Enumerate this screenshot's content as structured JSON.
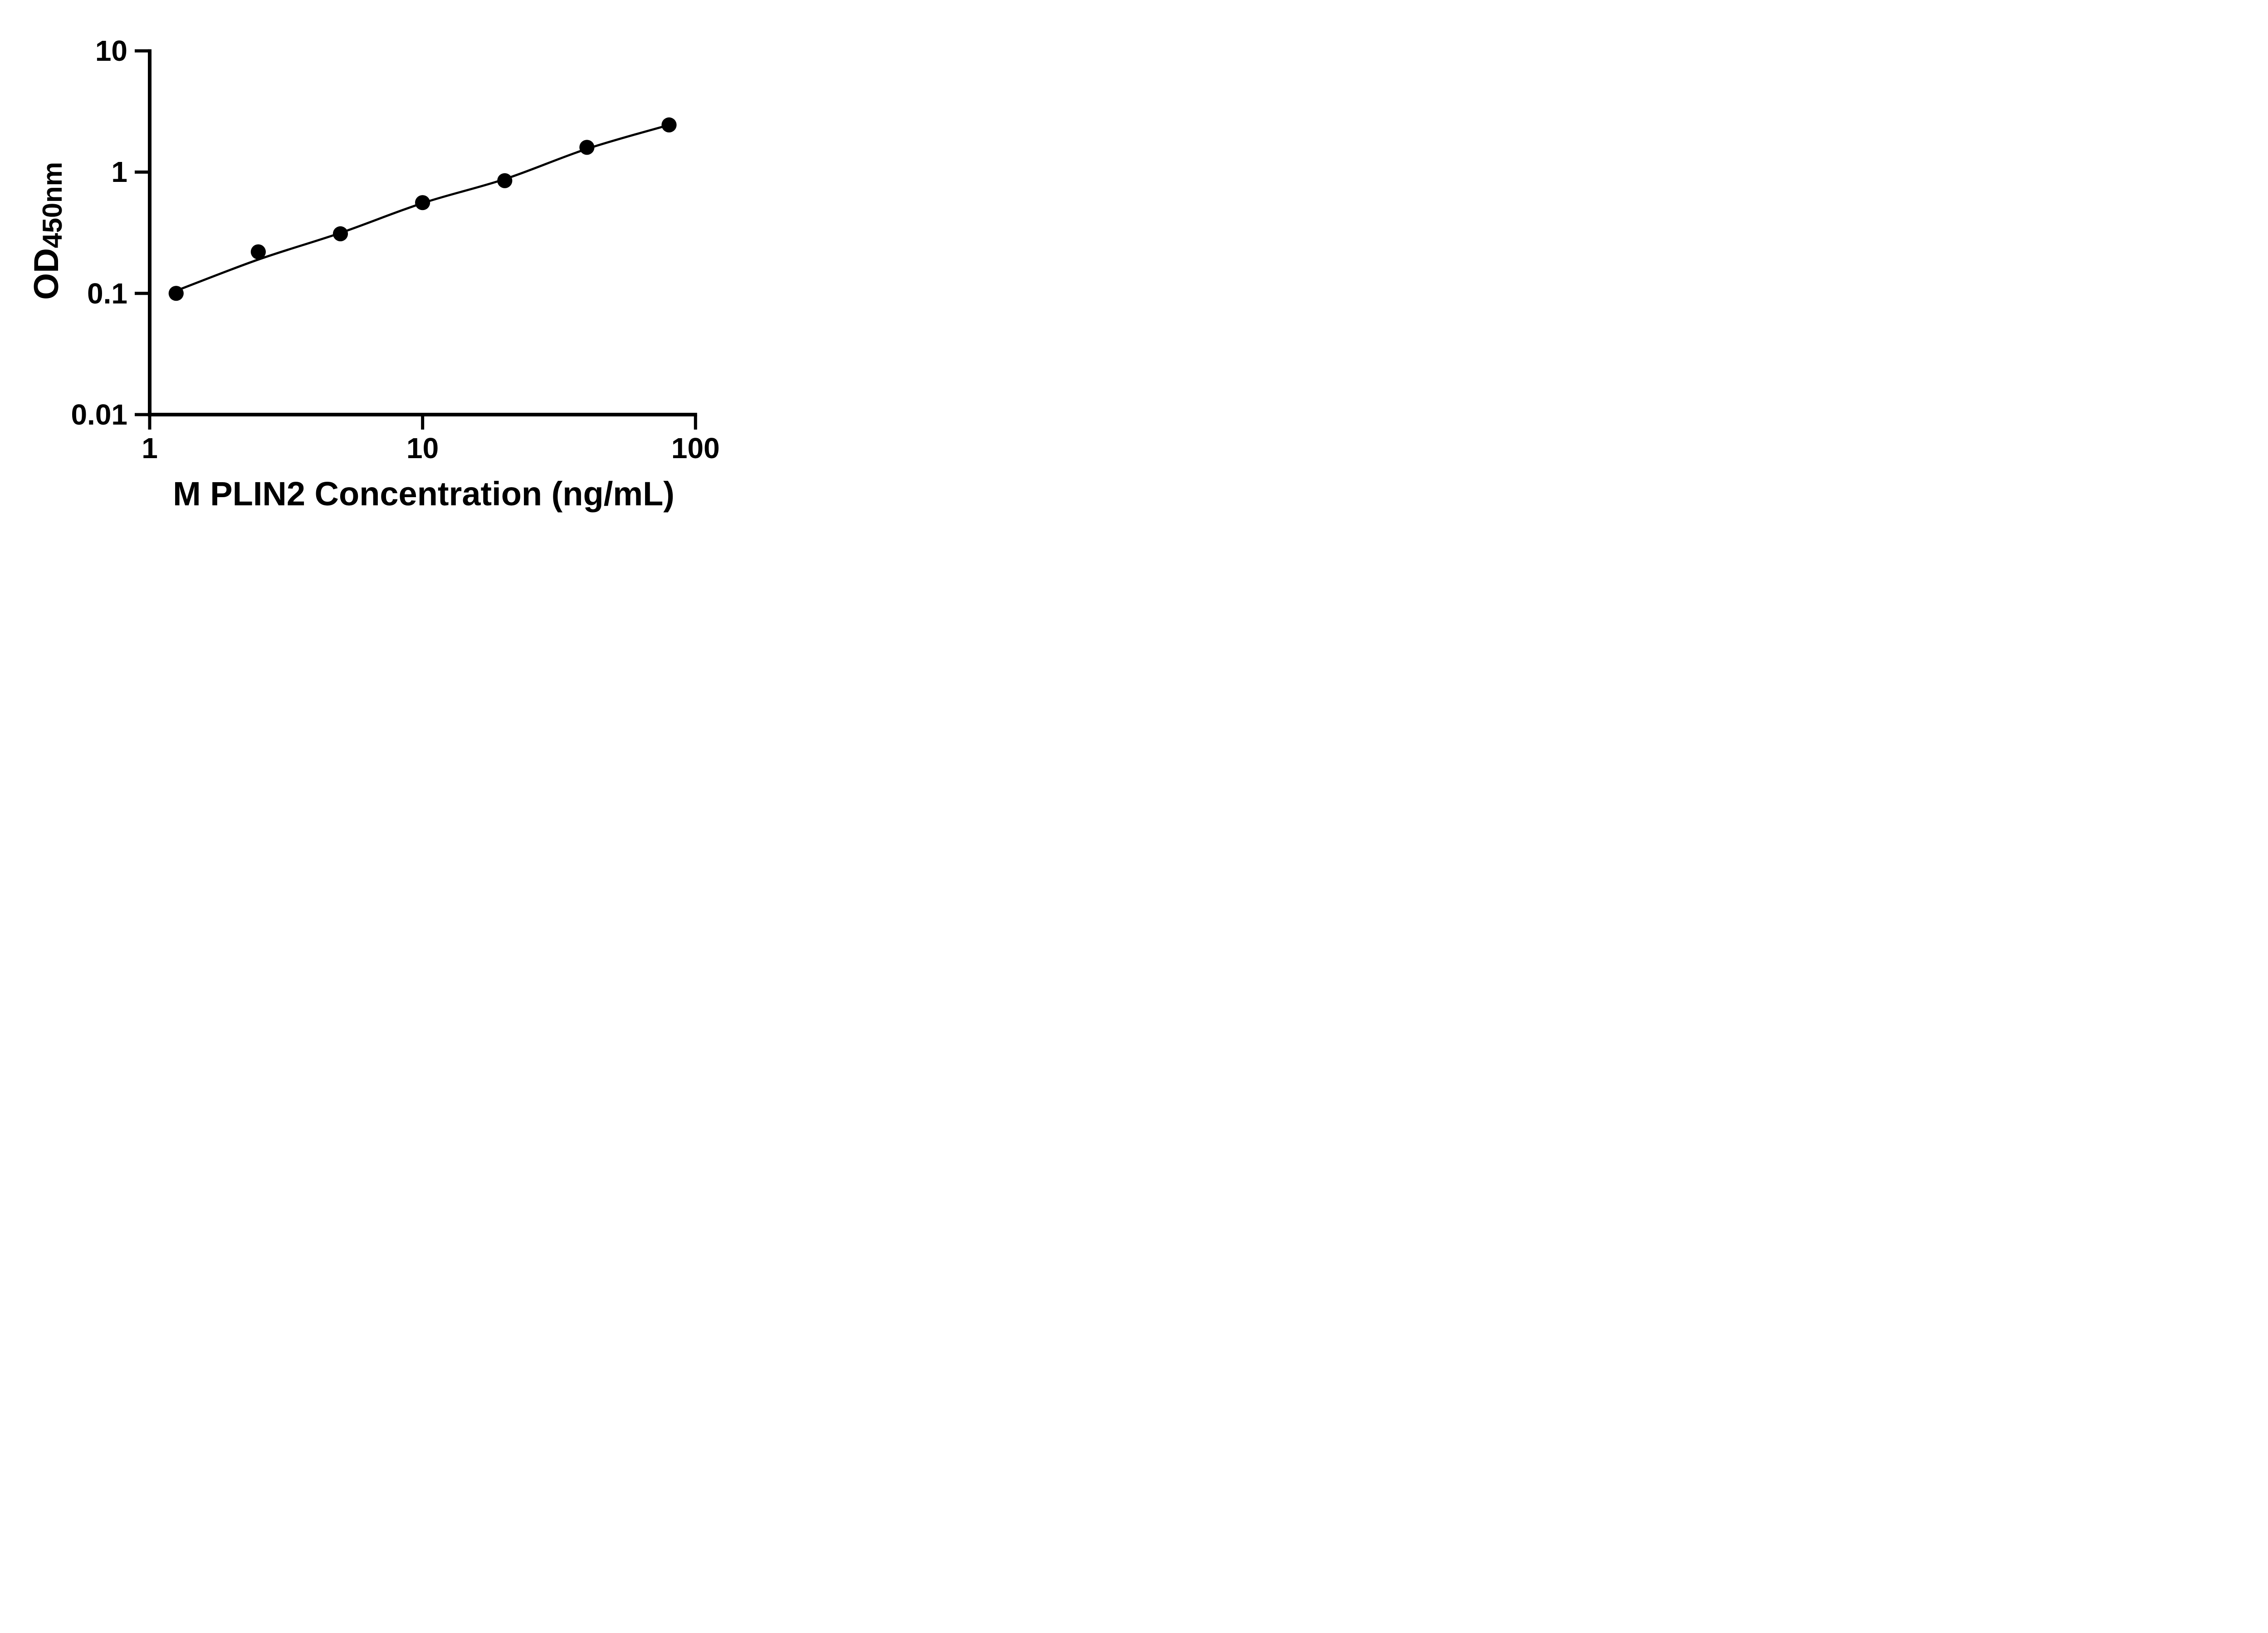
{
  "figure": {
    "background_color": "#ffffff",
    "foreground_color": "#000000"
  },
  "chart_data": {
    "type": "scatter",
    "subtype": "standard-curve-with-fit-line",
    "title": "",
    "xlabel": "M PLIN2 Concentration (ng/mL)",
    "ylabel_base": "OD",
    "ylabel_sub": "450nm",
    "x_scale": "log10",
    "y_scale": "log10",
    "xlim": [
      1,
      100
    ],
    "ylim": [
      0.01,
      10
    ],
    "x_ticks": [
      1,
      10,
      100
    ],
    "y_ticks": [
      10,
      1,
      0.1,
      0.01
    ],
    "x_tick_labels": [
      "1",
      "10",
      "100"
    ],
    "y_tick_labels": [
      "10",
      "1",
      "0.1",
      "0.01"
    ],
    "grid": false,
    "legend": null,
    "marker": "filled-circle",
    "marker_color": "#000000",
    "line_color": "#000000",
    "series": [
      {
        "name": "standard-curve-points",
        "x": [
          1.25,
          2.5,
          5,
          10,
          20,
          40,
          80
        ],
        "y": [
          0.1,
          0.22,
          0.31,
          0.56,
          0.85,
          1.6,
          2.45
        ]
      }
    ],
    "fit_line": {
      "x": [
        1.25,
        2.5,
        5,
        10,
        20,
        40,
        80
      ],
      "y": [
        0.105,
        0.19,
        0.315,
        0.555,
        0.875,
        1.555,
        2.45
      ]
    }
  }
}
